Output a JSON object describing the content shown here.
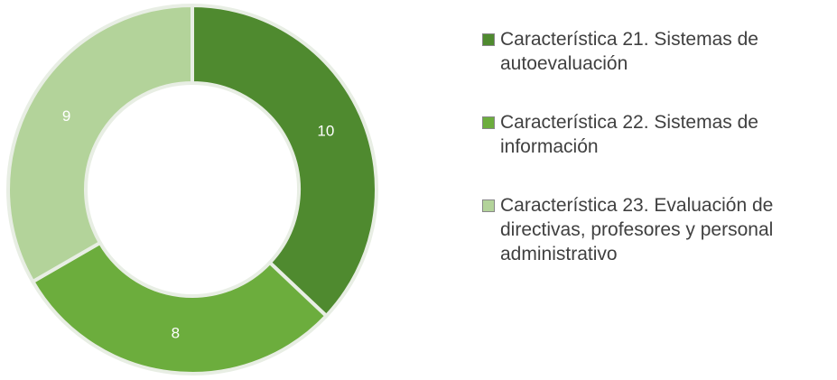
{
  "chart_data": {
    "type": "donut",
    "categories": [
      "Característica 21. Sistemas de autoevaluación",
      "Característica 22. Sistemas de información",
      "Característica 23. Evaluación de directivas, profesores y personal administrativo"
    ],
    "values": [
      10,
      8,
      9
    ],
    "colors": [
      "#4f8a2f",
      "#6cad3d",
      "#b3d39a"
    ],
    "legend": "right"
  }
}
